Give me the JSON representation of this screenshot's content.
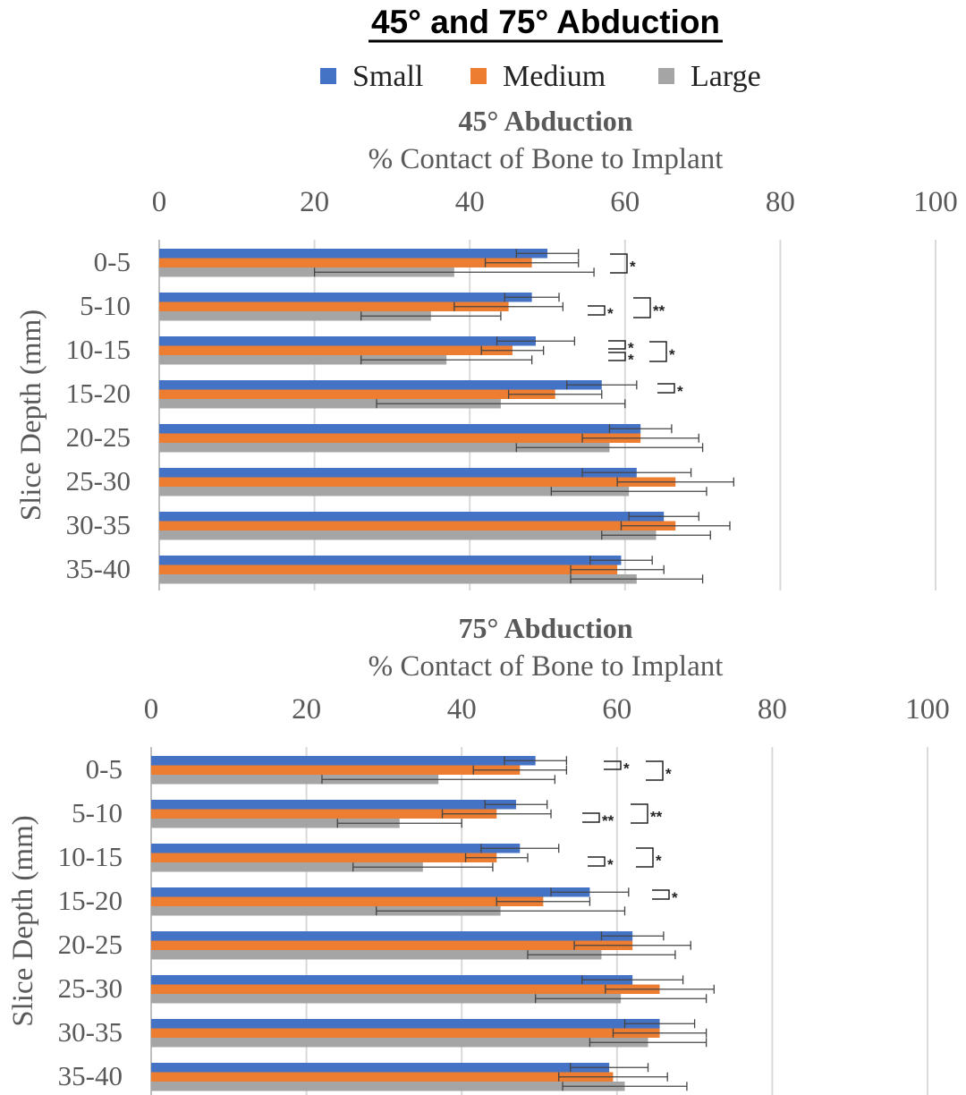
{
  "title": "45° and 75° Abduction",
  "legend": [
    {
      "name": "Small",
      "color": "#4472C4"
    },
    {
      "name": "Medium",
      "color": "#ED7D31"
    },
    {
      "name": "Large",
      "color": "#A5A5A5"
    }
  ],
  "chart_data": [
    {
      "type": "bar",
      "orientation": "horizontal",
      "title": "45° Abduction",
      "xlabel": "% Contact of Bone to Implant",
      "ylabel": "Slice Depth (mm)",
      "xlim": [
        0,
        100
      ],
      "xticks": [
        "0",
        "20",
        "40",
        "60",
        "80",
        "100"
      ],
      "grid": true,
      "categories": [
        "0-5",
        "5-10",
        "10-15",
        "15-20",
        "20-25",
        "25-30",
        "30-35",
        "35-40"
      ],
      "series": [
        {
          "name": "Small",
          "values": [
            50,
            48,
            48.5,
            57,
            62,
            61.5,
            65,
            59.5
          ],
          "errors": [
            4,
            3.5,
            5,
            4.5,
            4,
            7,
            4.5,
            4
          ]
        },
        {
          "name": "Medium",
          "values": [
            48,
            45,
            45.5,
            51,
            62,
            66.5,
            66.5,
            59
          ],
          "errors": [
            6,
            7,
            4,
            6,
            7.5,
            7.5,
            7,
            6
          ]
        },
        {
          "name": "Large",
          "values": [
            38,
            35,
            37,
            44,
            58,
            60.5,
            64,
            61.5
          ],
          "errors": [
            18,
            9,
            11,
            16,
            12,
            10,
            7,
            8.5
          ]
        }
      ],
      "significance": [
        {
          "category": "0-5",
          "label": "*"
        },
        {
          "category": "5-10",
          "label": "*"
        },
        {
          "category": "5-10",
          "label": "**"
        },
        {
          "category": "10-15",
          "label": "*"
        },
        {
          "category": "10-15",
          "label": "*"
        },
        {
          "category": "10-15",
          "label": "*"
        },
        {
          "category": "15-20",
          "label": "*"
        }
      ]
    },
    {
      "type": "bar",
      "orientation": "horizontal",
      "title": "75° Abduction",
      "xlabel": "% Contact of Bone to Implant",
      "ylabel": "Slice Depth (mm)",
      "xlim": [
        0,
        100
      ],
      "xticks": [
        "0",
        "20",
        "40",
        "60",
        "80",
        "100"
      ],
      "grid": true,
      "categories": [
        "0-5",
        "5-10",
        "10-15",
        "15-20",
        "20-25",
        "25-30",
        "30-35",
        "35-40"
      ],
      "series": [
        {
          "name": "Small",
          "values": [
            49.5,
            47,
            47.5,
            56.5,
            62,
            62,
            65.5,
            59
          ],
          "errors": [
            4,
            4,
            5,
            5,
            4,
            6.5,
            4.5,
            5
          ]
        },
        {
          "name": "Medium",
          "values": [
            47.5,
            44.5,
            44.5,
            50.5,
            62,
            65.5,
            65.5,
            59.5
          ],
          "errors": [
            6,
            7,
            4,
            6,
            7.5,
            7,
            6,
            7
          ]
        },
        {
          "name": "Large",
          "values": [
            37,
            32,
            35,
            45,
            58,
            60.5,
            64,
            61
          ],
          "errors": [
            15,
            8,
            9,
            16,
            9.5,
            11,
            7.5,
            8
          ]
        }
      ],
      "significance": [
        {
          "category": "0-5",
          "label": "*"
        },
        {
          "category": "0-5",
          "label": "*"
        },
        {
          "category": "5-10",
          "label": "**"
        },
        {
          "category": "5-10",
          "label": "**"
        },
        {
          "category": "10-15",
          "label": "*"
        },
        {
          "category": "10-15",
          "label": "*"
        },
        {
          "category": "15-20",
          "label": "*"
        }
      ]
    }
  ]
}
